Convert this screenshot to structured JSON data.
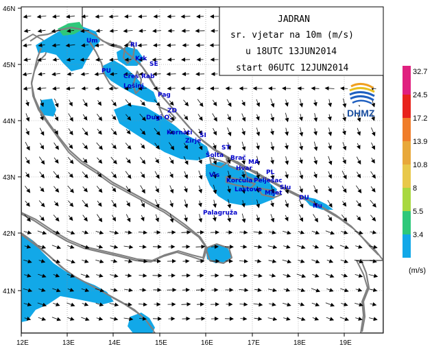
{
  "title_box": {
    "line1": "JADRAN",
    "line2": "sr. vjetar na 10m (m/s)",
    "line3": "u 18UTC 13JUN2014",
    "line4": "start 06UTC 12JUN2014"
  },
  "logo": {
    "text": "DHMZ"
  },
  "axes": {
    "lat_ticks": [
      "46N",
      "45N",
      "44N",
      "43N",
      "42N",
      "41N"
    ],
    "lon_ticks": [
      "12E",
      "13E",
      "14E",
      "15E",
      "16E",
      "17E",
      "18E",
      "19E"
    ]
  },
  "legend": {
    "unit": "(m/s)",
    "levels": [
      {
        "label": "32.7",
        "color": "#e0207f"
      },
      {
        "label": "24.5",
        "color": "#e8231c"
      },
      {
        "label": "17.2",
        "color": "#f07d2a"
      },
      {
        "label": "13.9",
        "color": "#e8a83a"
      },
      {
        "label": "10.8",
        "color": "#e8c84a"
      },
      {
        "label": "8",
        "color": "#a8d840"
      },
      {
        "label": "5.5",
        "color": "#2ec87a"
      },
      {
        "label": "3.4",
        "color": "#12a8e8"
      }
    ],
    "top_color": "#e0207f"
  },
  "places": [
    {
      "name": "Um"
    },
    {
      "name": "RI"
    },
    {
      "name": "Krk"
    },
    {
      "name": "SE"
    },
    {
      "name": "PU"
    },
    {
      "name": "Cres"
    },
    {
      "name": "Rab"
    },
    {
      "name": "Lošinj"
    },
    {
      "name": "Pag"
    },
    {
      "name": "ZD"
    },
    {
      "name": "Dugi O."
    },
    {
      "name": "Kornati"
    },
    {
      "name": "Zirje"
    },
    {
      "name": "ŠI"
    },
    {
      "name": "ST"
    },
    {
      "name": "Šolta"
    },
    {
      "name": "Brač"
    },
    {
      "name": "MA"
    },
    {
      "name": "Hvar"
    },
    {
      "name": "PL"
    },
    {
      "name": "Vis"
    },
    {
      "name": "Korčula"
    },
    {
      "name": "Pelješac"
    },
    {
      "name": "Lastovo"
    },
    {
      "name": "Mljet"
    },
    {
      "name": "SIu"
    },
    {
      "name": "DU"
    },
    {
      "name": "Nu"
    },
    {
      "name": "Palagruža"
    }
  ],
  "colors": {
    "land": "#808080",
    "sea": "#ffffff",
    "wind_3_4": "#12a8e8",
    "wind_5_5": "#2ec87a",
    "label": "#0000cc"
  }
}
